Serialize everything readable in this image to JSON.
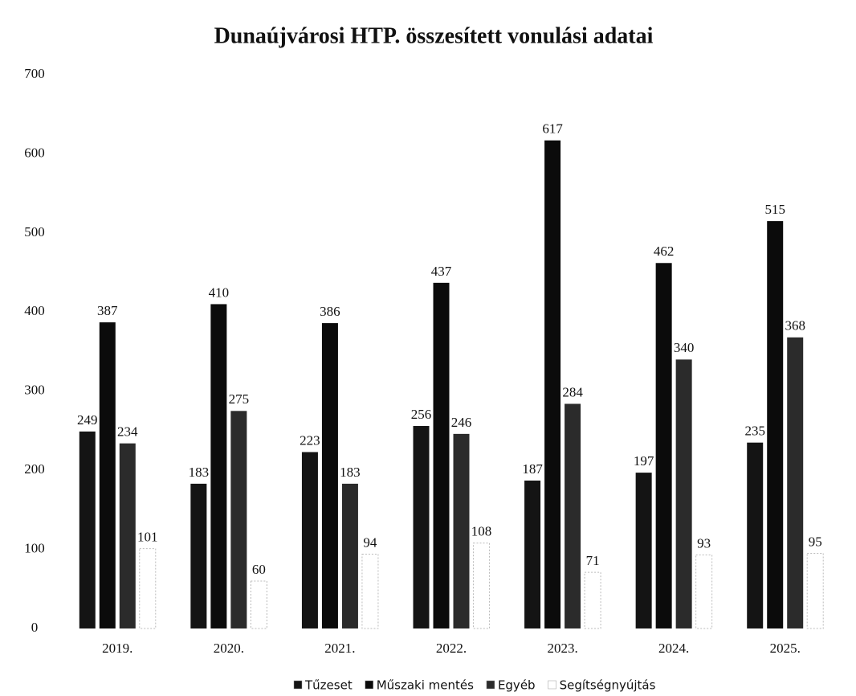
{
  "chart_data": {
    "type": "bar",
    "title": "Dunaújvárosi HTP. összesített vonulási adatai",
    "categories": [
      "2019.",
      "2020.",
      "2021.",
      "2022.",
      "2023.",
      "2024.",
      "2025."
    ],
    "series": [
      {
        "name": "Tűzeset",
        "color": "#141414",
        "values": [
          249,
          183,
          223,
          256,
          187,
          197,
          235
        ]
      },
      {
        "name": "Műszaki mentés",
        "color": "#0b0b0b",
        "values": [
          387,
          410,
          386,
          437,
          617,
          462,
          515
        ]
      },
      {
        "name": "Egyéb",
        "color": "#2b2b2b",
        "values": [
          234,
          275,
          183,
          246,
          284,
          340,
          368
        ]
      },
      {
        "name": "Segítségnyújtás",
        "color": "#ffffff",
        "values": [
          101,
          60,
          94,
          108,
          71,
          93,
          95
        ]
      }
    ],
    "ylim": [
      0,
      700
    ],
    "yticks": [
      0,
      100,
      200,
      300,
      400,
      500,
      600,
      700
    ],
    "grid": false,
    "legend": "bottom"
  }
}
